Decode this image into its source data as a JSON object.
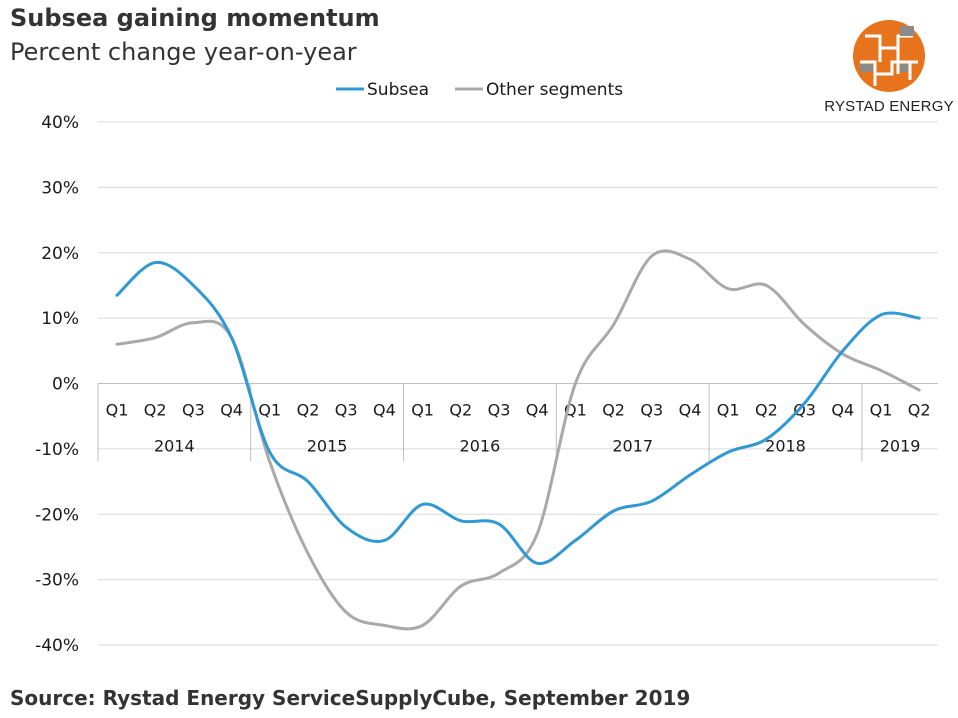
{
  "title": "Subsea gaining momentum",
  "subtitle": "Percent change year-on-year",
  "source": "Source: Rystad Energy ServiceSupplyCube, September 2019",
  "logo": {
    "text": "RYSTAD ENERGY",
    "colors": {
      "orange": "#e8731d",
      "dark_orange": "#b8480f",
      "grey": "#8a8a8a"
    }
  },
  "colors": {
    "subsea": "#2f98d6",
    "other": "#a9a9ab",
    "grid": "#d9d9d9"
  },
  "chart_data": {
    "type": "line",
    "title": "Subsea gaining momentum",
    "subtitle": "Percent change year-on-year",
    "ylabel": "",
    "xlabel": "",
    "ylim": [
      -40,
      40
    ],
    "y_ticks": [
      40,
      30,
      20,
      10,
      0,
      -10,
      -20,
      -30,
      -40
    ],
    "y_tick_labels": [
      "40%",
      "30%",
      "20%",
      "10%",
      "0%",
      "-10%",
      "-20%",
      "-30%",
      "-40%"
    ],
    "categories": [
      "Q1",
      "Q2",
      "Q3",
      "Q4",
      "Q1",
      "Q2",
      "Q3",
      "Q4",
      "Q1",
      "Q2",
      "Q3",
      "Q4",
      "Q1",
      "Q2",
      "Q3",
      "Q4",
      "Q1",
      "Q2",
      "Q3",
      "Q4",
      "Q1",
      "Q2"
    ],
    "years": [
      {
        "label": "2014",
        "quarters": 4
      },
      {
        "label": "2015",
        "quarters": 4
      },
      {
        "label": "2016",
        "quarters": 4
      },
      {
        "label": "2017",
        "quarters": 4
      },
      {
        "label": "2018",
        "quarters": 4
      },
      {
        "label": "2019",
        "quarters": 2
      }
    ],
    "legend_position": "top-center",
    "grid": true,
    "series": [
      {
        "name": "Subsea",
        "values": [
          13.5,
          18.5,
          15,
          7,
          -10.5,
          -15,
          -22,
          -24,
          -18.5,
          -21,
          -21.5,
          -27.5,
          -24,
          -19.5,
          -18,
          -14,
          -10.5,
          -8.5,
          -3,
          5,
          10.5,
          10
        ]
      },
      {
        "name": "Other segments",
        "values": [
          6,
          7,
          9.3,
          7,
          -12,
          -26,
          -35,
          -37,
          -37,
          -31,
          -29,
          -23,
          0,
          9,
          19.5,
          19,
          14.5,
          15,
          9,
          4.5,
          2,
          -1
        ]
      }
    ]
  }
}
